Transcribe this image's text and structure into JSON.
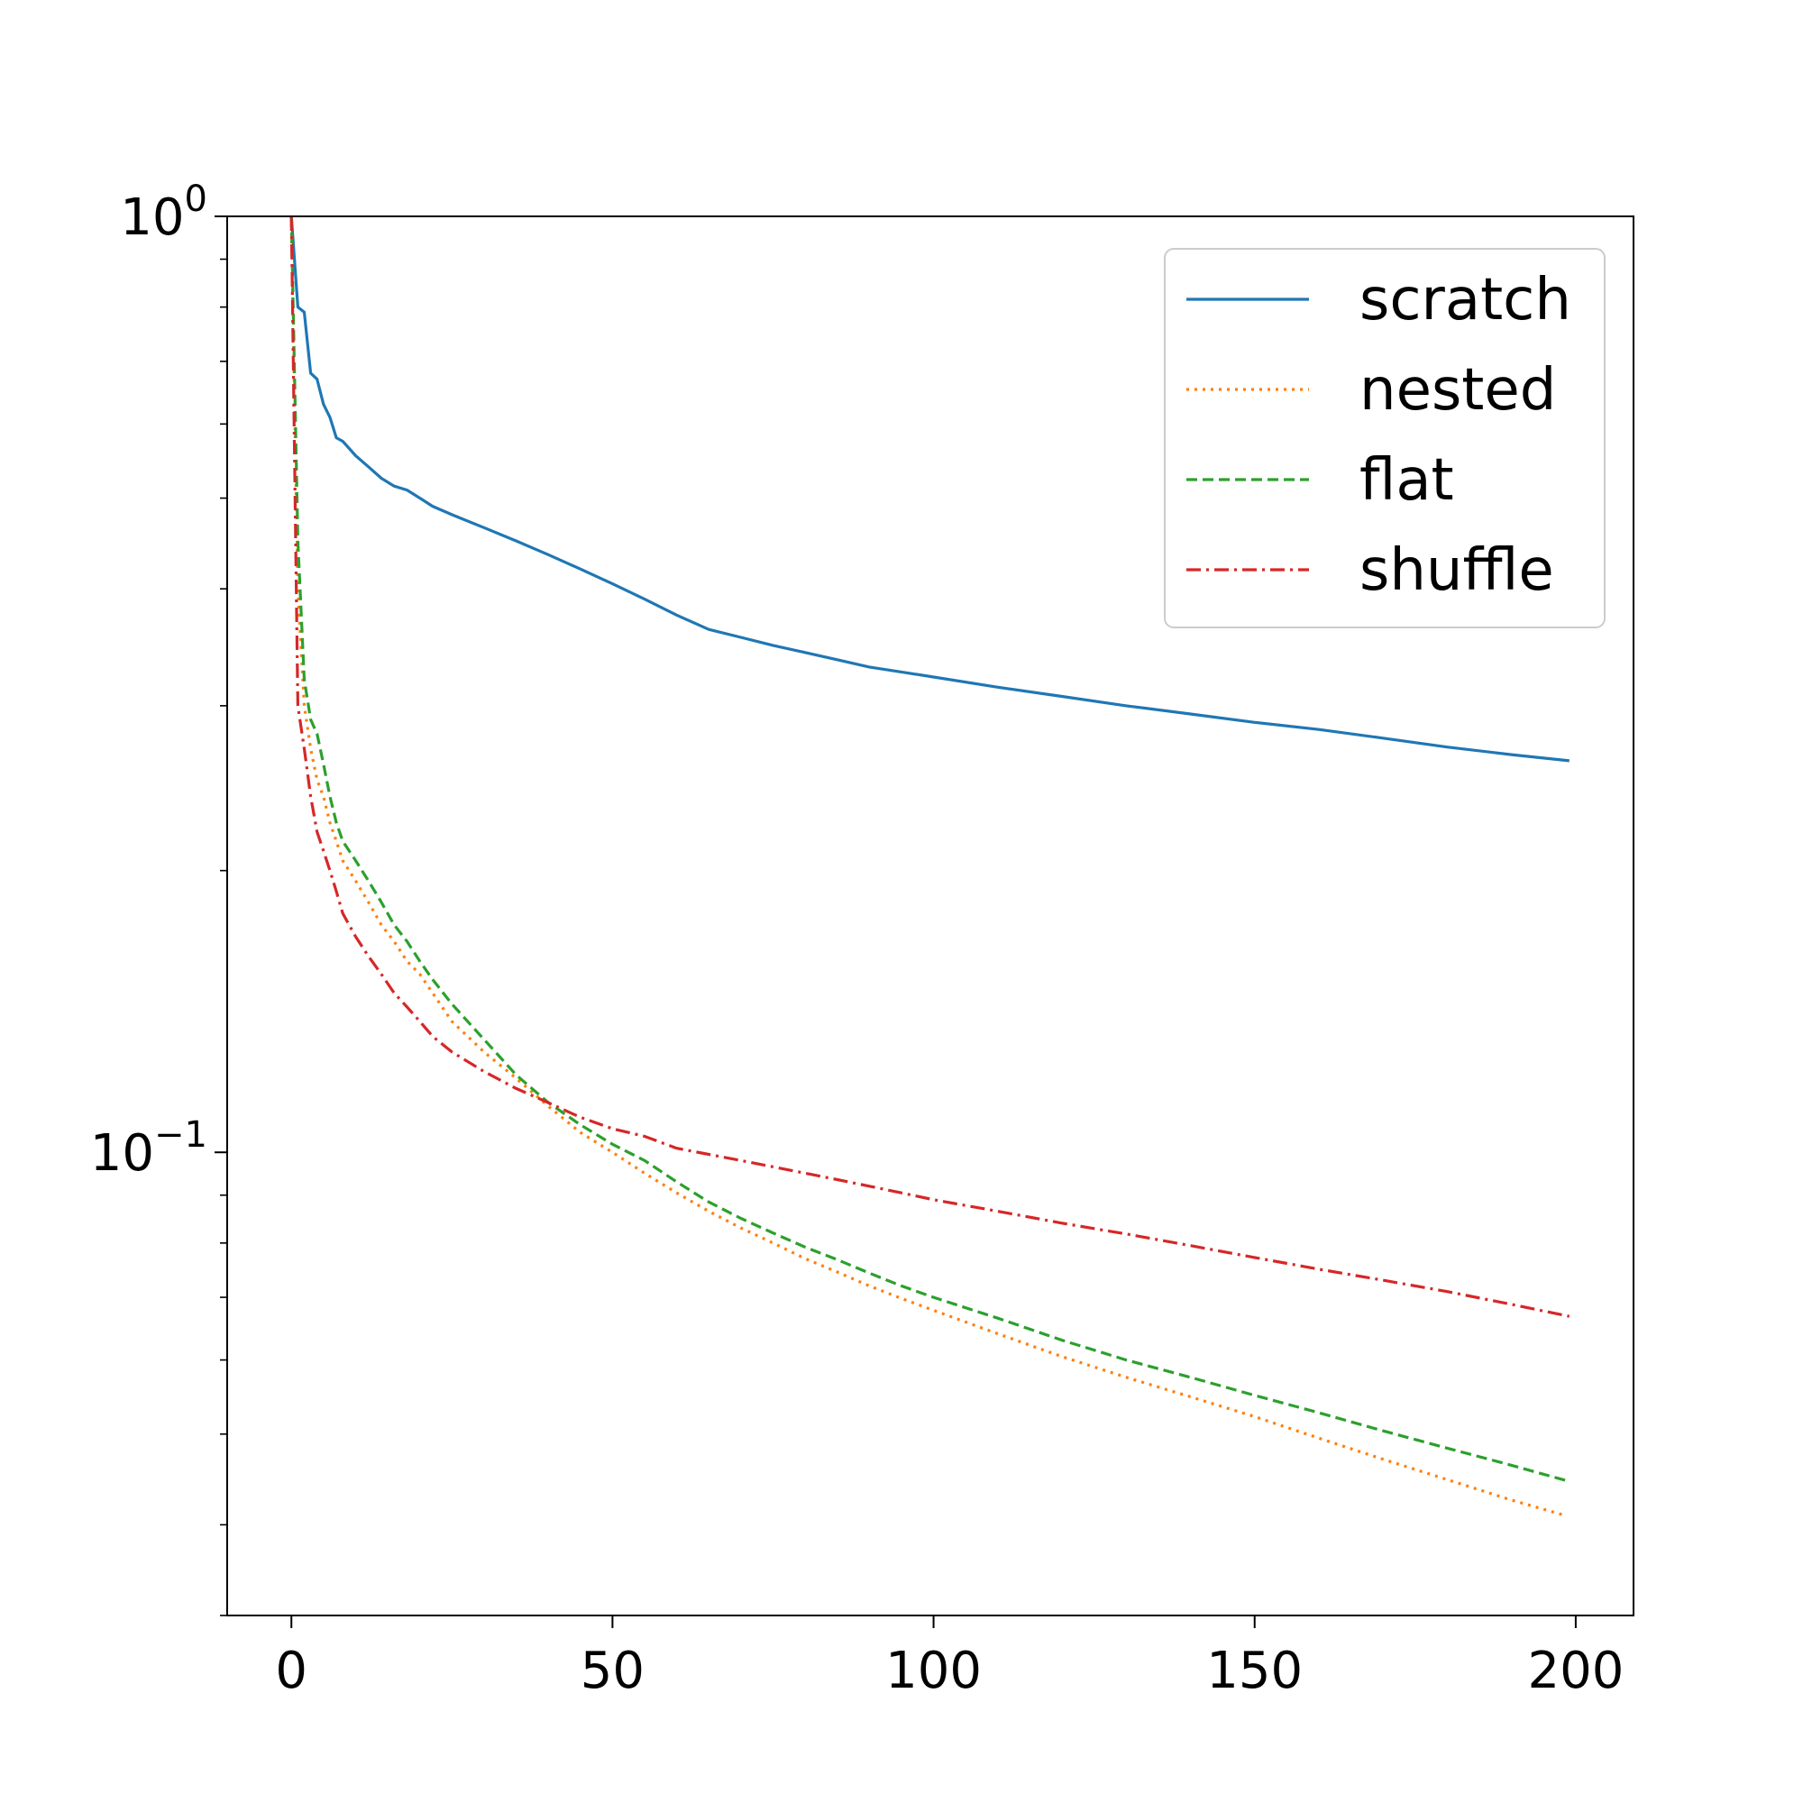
{
  "chart_data": {
    "type": "line",
    "title": "",
    "xlabel": "",
    "ylabel": "",
    "xscale": "linear",
    "yscale": "log",
    "xlim": [
      -10,
      209
    ],
    "ylim": [
      0.032,
      1.0
    ],
    "grid": false,
    "legend_position": "top-right",
    "x_ticks": [
      {
        "value": 0,
        "label": "0"
      },
      {
        "value": 50,
        "label": "50"
      },
      {
        "value": 100,
        "label": "100"
      },
      {
        "value": 150,
        "label": "150"
      },
      {
        "value": 200,
        "label": "200"
      }
    ],
    "y_ticks": [
      {
        "value": 1.0,
        "base": "10",
        "exponent": "0"
      },
      {
        "value": 0.1,
        "base": "10",
        "exponent": "−1"
      }
    ],
    "series": [
      {
        "name": "scratch",
        "color": "#1f77b4",
        "linestyle": "solid",
        "x": [
          0,
          1,
          2,
          3,
          4,
          5,
          6,
          7,
          8,
          10,
          12,
          14,
          16,
          18,
          20,
          22,
          25,
          30,
          35,
          40,
          45,
          50,
          55,
          60,
          65,
          70,
          75,
          80,
          85,
          90,
          95,
          100,
          110,
          120,
          130,
          140,
          150,
          160,
          170,
          180,
          190,
          199
        ],
        "values": [
          1.0,
          0.8,
          0.79,
          0.68,
          0.67,
          0.63,
          0.61,
          0.58,
          0.575,
          0.555,
          0.54,
          0.525,
          0.515,
          0.51,
          0.5,
          0.49,
          0.48,
          0.465,
          0.45,
          0.435,
          0.42,
          0.405,
          0.39,
          0.375,
          0.362,
          0.355,
          0.348,
          0.342,
          0.336,
          0.33,
          0.326,
          0.322,
          0.314,
          0.307,
          0.3,
          0.294,
          0.288,
          0.283,
          0.277,
          0.271,
          0.266,
          0.262
        ]
      },
      {
        "name": "nested",
        "color": "#ff7f0e",
        "linestyle": "dotted",
        "x": [
          0,
          1,
          2,
          3,
          4,
          5,
          6,
          7,
          8,
          10,
          12,
          14,
          16,
          18,
          20,
          22,
          25,
          30,
          35,
          40,
          45,
          50,
          55,
          60,
          65,
          70,
          75,
          80,
          85,
          90,
          95,
          100,
          110,
          120,
          130,
          140,
          150,
          160,
          170,
          180,
          190,
          198
        ],
        "values": [
          1.0,
          0.4,
          0.3,
          0.27,
          0.25,
          0.24,
          0.225,
          0.215,
          0.205,
          0.195,
          0.185,
          0.175,
          0.168,
          0.16,
          0.155,
          0.148,
          0.138,
          0.128,
          0.12,
          0.112,
          0.105,
          0.1,
          0.095,
          0.0905,
          0.0865,
          0.083,
          0.08,
          0.077,
          0.0745,
          0.072,
          0.0698,
          0.0678,
          0.064,
          0.0605,
          0.0575,
          0.0548,
          0.0522,
          0.0495,
          0.047,
          0.0447,
          0.0425,
          0.041
        ]
      },
      {
        "name": "flat",
        "color": "#2ca02c",
        "linestyle": "dashed",
        "x": [
          0,
          1,
          2,
          3,
          4,
          5,
          6,
          7,
          8,
          10,
          12,
          14,
          16,
          18,
          20,
          22,
          25,
          30,
          35,
          40,
          45,
          50,
          55,
          60,
          65,
          70,
          75,
          80,
          85,
          90,
          95,
          100,
          110,
          120,
          130,
          140,
          150,
          160,
          170,
          180,
          190,
          199
        ],
        "values": [
          1.0,
          0.45,
          0.32,
          0.29,
          0.28,
          0.26,
          0.24,
          0.225,
          0.215,
          0.205,
          0.195,
          0.185,
          0.175,
          0.168,
          0.16,
          0.153,
          0.144,
          0.132,
          0.121,
          0.113,
          0.107,
          0.102,
          0.098,
          0.093,
          0.0885,
          0.085,
          0.082,
          0.0792,
          0.0768,
          0.0743,
          0.072,
          0.07,
          0.0665,
          0.063,
          0.06,
          0.0575,
          0.055,
          0.0527,
          0.0504,
          0.0483,
          0.0463,
          0.0445
        ]
      },
      {
        "name": "shuffle",
        "color": "#d62728",
        "linestyle": "dashdot",
        "x": [
          0,
          1,
          2,
          3,
          4,
          5,
          6,
          7,
          8,
          10,
          12,
          14,
          16,
          18,
          20,
          22,
          25,
          30,
          35,
          40,
          45,
          50,
          55,
          60,
          65,
          70,
          75,
          80,
          85,
          90,
          95,
          100,
          110,
          120,
          130,
          140,
          150,
          160,
          170,
          180,
          190,
          199
        ],
        "values": [
          1.0,
          0.3,
          0.27,
          0.24,
          0.22,
          0.21,
          0.2,
          0.19,
          0.18,
          0.17,
          0.162,
          0.155,
          0.148,
          0.143,
          0.138,
          0.133,
          0.128,
          0.122,
          0.117,
          0.113,
          0.109,
          0.106,
          0.104,
          0.101,
          0.0995,
          0.098,
          0.0965,
          0.095,
          0.0935,
          0.092,
          0.0905,
          0.089,
          0.0865,
          0.084,
          0.0818,
          0.0795,
          0.0772,
          0.075,
          0.073,
          0.071,
          0.0688,
          0.0668
        ]
      }
    ]
  }
}
